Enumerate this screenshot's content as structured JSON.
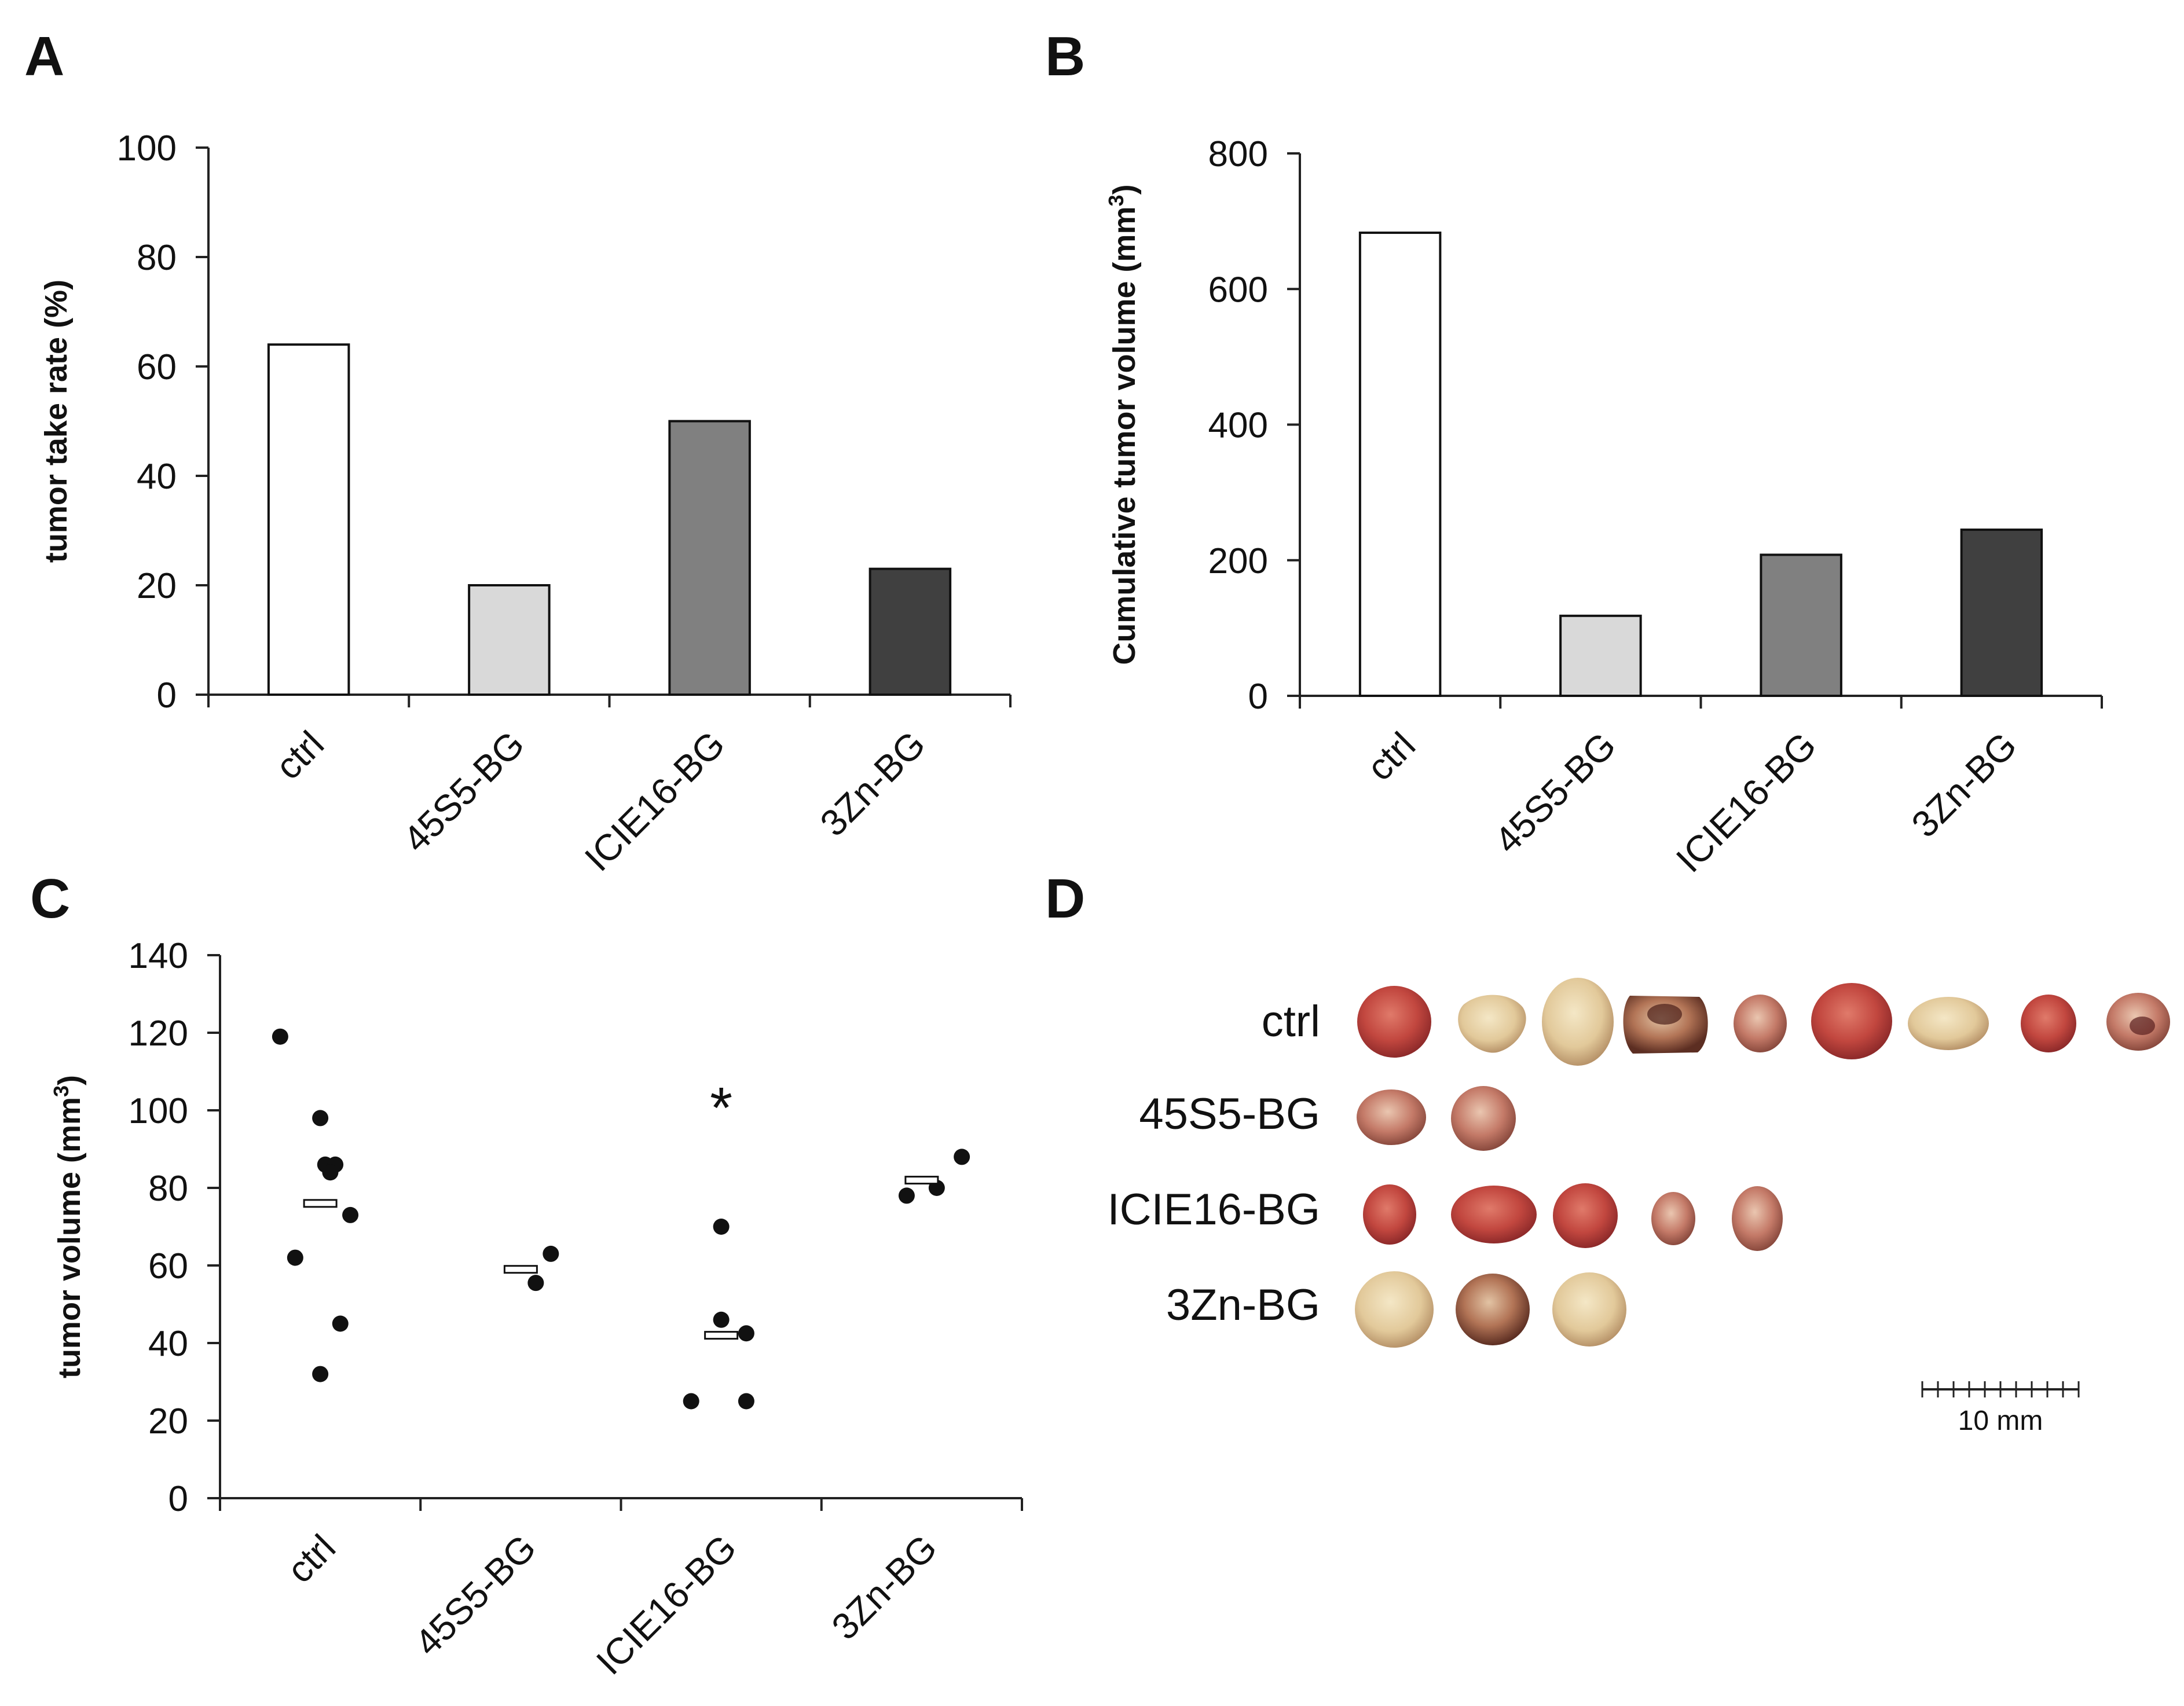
{
  "chart_data": [
    {
      "panel": "A",
      "type": "bar",
      "categories": [
        "ctrl",
        "45S5-BG",
        "ICIE16-BG",
        "3Zn-BG"
      ],
      "values": [
        64,
        20,
        50,
        23
      ],
      "colors": [
        "#ffffff",
        "#d9d9d9",
        "#808080",
        "#404040"
      ],
      "ylabel": "tumor take rate (%)",
      "ylim": [
        0,
        100
      ],
      "yticks": [
        0,
        20,
        40,
        60,
        80,
        100
      ]
    },
    {
      "panel": "B",
      "type": "bar",
      "categories": [
        "ctrl",
        "45S5-BG",
        "ICIE16-BG",
        "3Zn-BG"
      ],
      "values": [
        683,
        118,
        208,
        245
      ],
      "colors": [
        "#ffffff",
        "#d9d9d9",
        "#808080",
        "#404040"
      ],
      "ylabel_main": "Cumulative tumor volume (mm",
      "ylabel_sup": "3",
      "ylabel_end": ")",
      "ylim": [
        0,
        800
      ],
      "yticks": [
        0,
        200,
        400,
        600,
        800
      ]
    },
    {
      "panel": "C",
      "type": "scatter",
      "categories": [
        "ctrl",
        "45S5-BG",
        "ICIE16-BG",
        "3Zn-BG"
      ],
      "ylabel_main": "tumor volume (mm",
      "ylabel_sup": "3",
      "ylabel_end": ")",
      "ylim": [
        0,
        140
      ],
      "yticks": [
        0,
        20,
        40,
        60,
        80,
        100,
        120,
        140
      ],
      "groups": [
        {
          "name": "ctrl",
          "points": [
            119,
            98,
            86,
            86,
            84,
            73,
            62,
            45,
            32
          ],
          "offsets": [
            -0.4,
            0.0,
            0.05,
            0.15,
            0.1,
            0.3,
            -0.25,
            0.2,
            0.0
          ],
          "mean": 76
        },
        {
          "name": "45S5-BG",
          "points": [
            63,
            55.5
          ],
          "offsets": [
            0.3,
            0.15
          ],
          "mean": 59
        },
        {
          "name": "ICIE16-BG",
          "points": [
            70,
            46,
            42.5,
            25,
            25
          ],
          "offsets": [
            0.0,
            0.0,
            0.25,
            -0.3,
            0.25
          ],
          "mean": 42
        },
        {
          "name": "3Zn-BG",
          "points": [
            78,
            80,
            88
          ],
          "offsets": [
            -0.15,
            0.15,
            0.4
          ],
          "mean": 82
        }
      ],
      "annotation": {
        "text": "*",
        "group": "ICIE16-BG",
        "y": 103
      }
    }
  ],
  "panel_labels": {
    "A": "A",
    "B": "B",
    "C": "C",
    "D": "D"
  },
  "photo_panel": {
    "rows": [
      {
        "label": "ctrl",
        "count": 9
      },
      {
        "label": "45S5-BG",
        "count": 2
      },
      {
        "label": "ICIE16-BG",
        "count": 5
      },
      {
        "label": "3Zn-BG",
        "count": 3
      }
    ],
    "scale_bar_label": "10 mm"
  }
}
